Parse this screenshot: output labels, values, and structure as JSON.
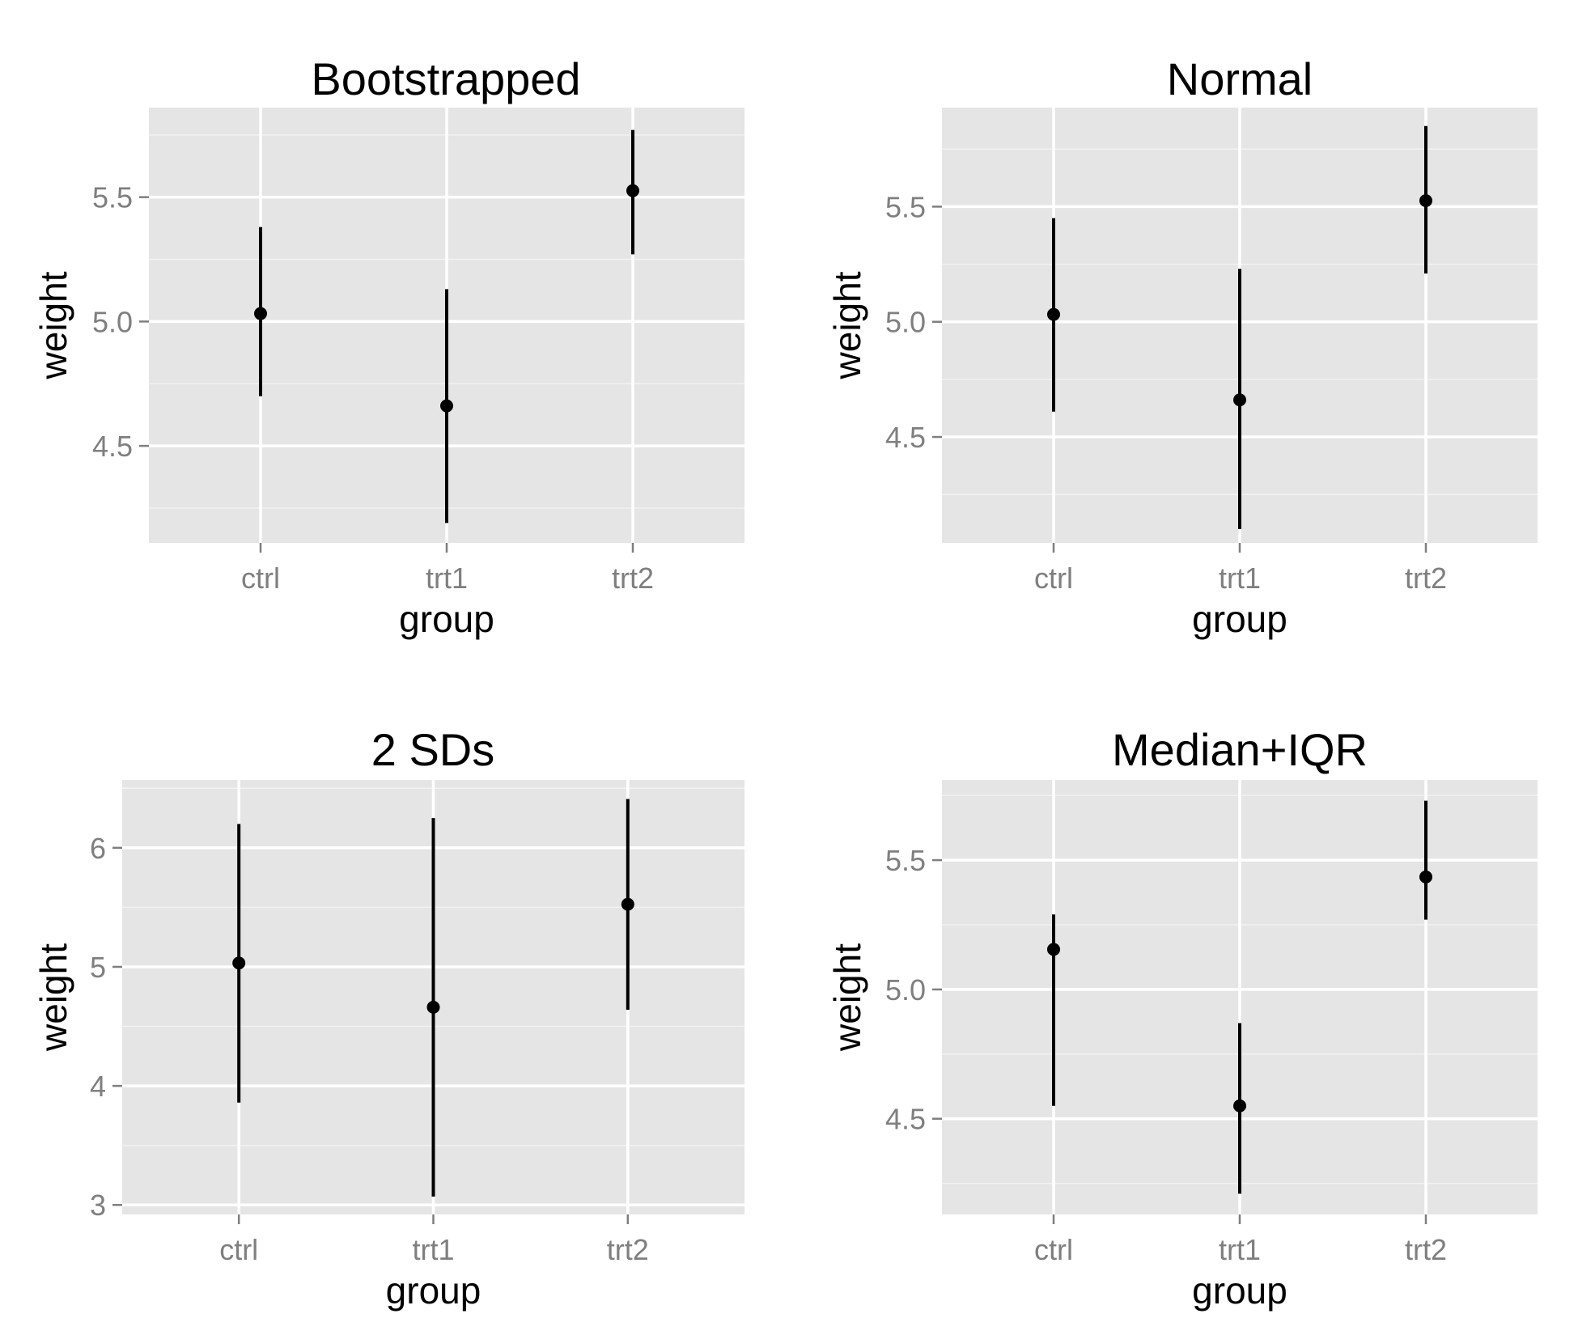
{
  "chart_data": [
    {
      "type": "pointrange",
      "title": "Bootstrapped",
      "xlabel": "group",
      "ylabel": "weight",
      "categories": [
        "ctrl",
        "trt1",
        "trt2"
      ],
      "yticks": [
        "4.5",
        "5.0",
        "5.5"
      ],
      "ytick_values": [
        4.5,
        5.0,
        5.5
      ],
      "ylim": [
        4.11,
        5.86
      ],
      "points": [
        {
          "x": "ctrl",
          "y": 5.032,
          "ymin": 4.7,
          "ymax": 5.38
        },
        {
          "x": "trt1",
          "y": 4.661,
          "ymin": 4.19,
          "ymax": 5.13
        },
        {
          "x": "trt2",
          "y": 5.526,
          "ymin": 5.27,
          "ymax": 5.77
        }
      ]
    },
    {
      "type": "pointrange",
      "title": "Normal",
      "xlabel": "group",
      "ylabel": "weight",
      "categories": [
        "ctrl",
        "trt1",
        "trt2"
      ],
      "yticks": [
        "4.5",
        "5.0",
        "5.5"
      ],
      "ytick_values": [
        4.5,
        5.0,
        5.5
      ],
      "ylim": [
        4.04,
        5.93
      ],
      "points": [
        {
          "x": "ctrl",
          "y": 5.032,
          "ymin": 4.61,
          "ymax": 5.45
        },
        {
          "x": "trt1",
          "y": 4.661,
          "ymin": 4.1,
          "ymax": 5.23
        },
        {
          "x": "trt2",
          "y": 5.526,
          "ymin": 5.21,
          "ymax": 5.85
        }
      ]
    },
    {
      "type": "pointrange",
      "title": "2 SDs",
      "xlabel": "group",
      "ylabel": "weight",
      "categories": [
        "ctrl",
        "trt1",
        "trt2"
      ],
      "yticks": [
        "3",
        "4",
        "5",
        "6"
      ],
      "ytick_values": [
        3,
        4,
        5,
        6
      ],
      "ylim": [
        2.92,
        6.57
      ],
      "points": [
        {
          "x": "ctrl",
          "y": 5.032,
          "ymin": 3.86,
          "ymax": 6.2
        },
        {
          "x": "trt1",
          "y": 4.661,
          "ymin": 3.07,
          "ymax": 6.25
        },
        {
          "x": "trt2",
          "y": 5.526,
          "ymin": 4.64,
          "ymax": 6.41
        }
      ]
    },
    {
      "type": "pointrange",
      "title": "Median+IQR",
      "xlabel": "group",
      "ylabel": "weight",
      "categories": [
        "ctrl",
        "trt1",
        "trt2"
      ],
      "yticks": [
        "4.5",
        "5.0",
        "5.5"
      ],
      "ytick_values": [
        4.5,
        5.0,
        5.5
      ],
      "ylim": [
        4.13,
        5.81
      ],
      "points": [
        {
          "x": "ctrl",
          "y": 5.155,
          "ymin": 4.55,
          "ymax": 5.29
        },
        {
          "x": "trt1",
          "y": 4.55,
          "ymin": 4.21,
          "ymax": 4.87
        },
        {
          "x": "trt2",
          "y": 5.435,
          "ymin": 5.27,
          "ymax": 5.73
        }
      ]
    }
  ]
}
